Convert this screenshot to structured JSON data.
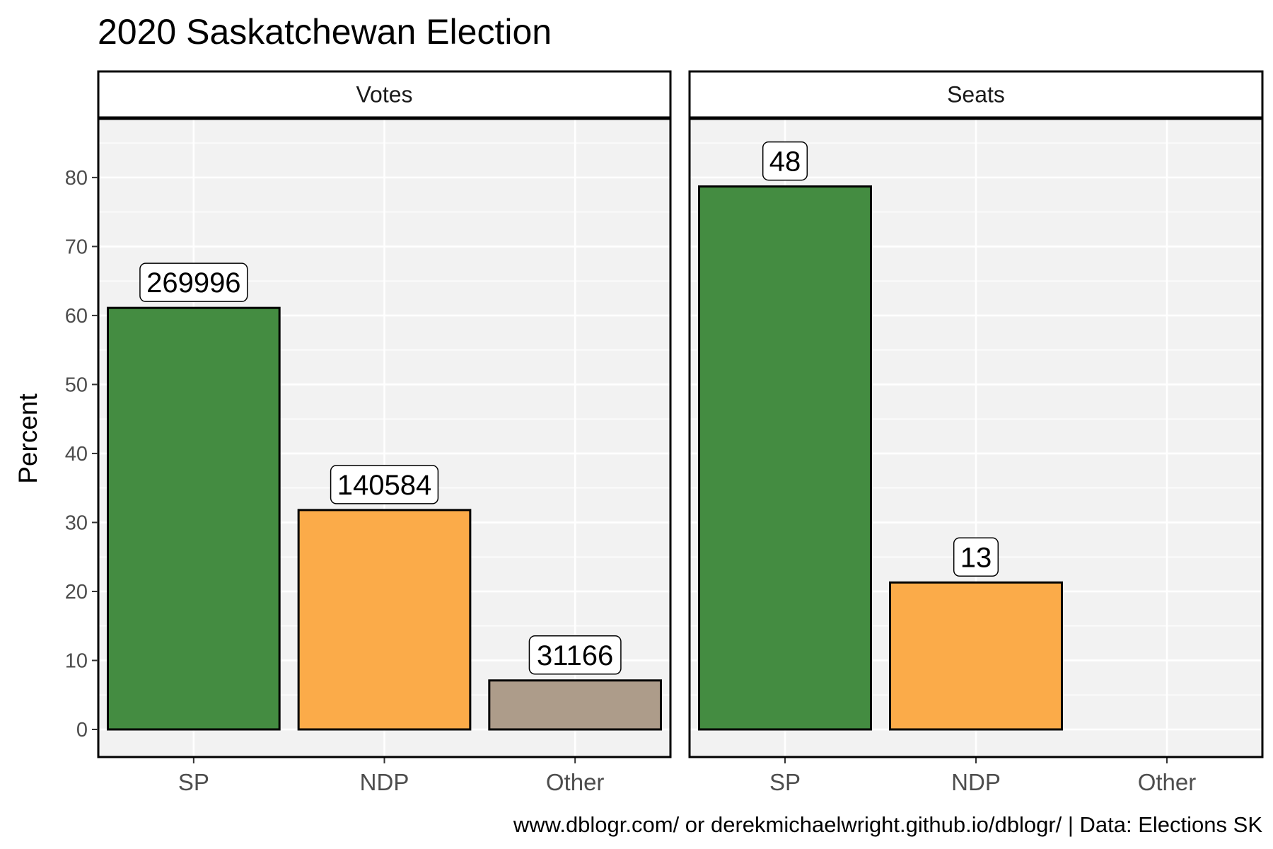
{
  "chart_data": {
    "type": "bar",
    "title": "2020 Saskatchewan Election",
    "ylabel": "Percent",
    "xlabel": "",
    "caption": "www.dblogr.com/ or derekmichaelwright.github.io/dblogr/ | Data: Elections SK",
    "categories": [
      "SP",
      "NDP",
      "Other"
    ],
    "ylim": [
      -4,
      88.5
    ],
    "yticks": [
      0,
      10,
      20,
      30,
      40,
      50,
      60,
      70,
      80
    ],
    "grid": true,
    "legend": "none",
    "colors": {
      "SP": "#3a8637",
      "NDP": "#fba73f",
      "Other": "#a99784"
    },
    "panels": [
      {
        "name": "Votes",
        "values": [
          61.1,
          31.8,
          7.1
        ],
        "labels": [
          "269996",
          "140584",
          "31166"
        ]
      },
      {
        "name": "Seats",
        "values": [
          78.7,
          21.3,
          null
        ],
        "labels": [
          "48",
          "13",
          ""
        ]
      }
    ]
  }
}
